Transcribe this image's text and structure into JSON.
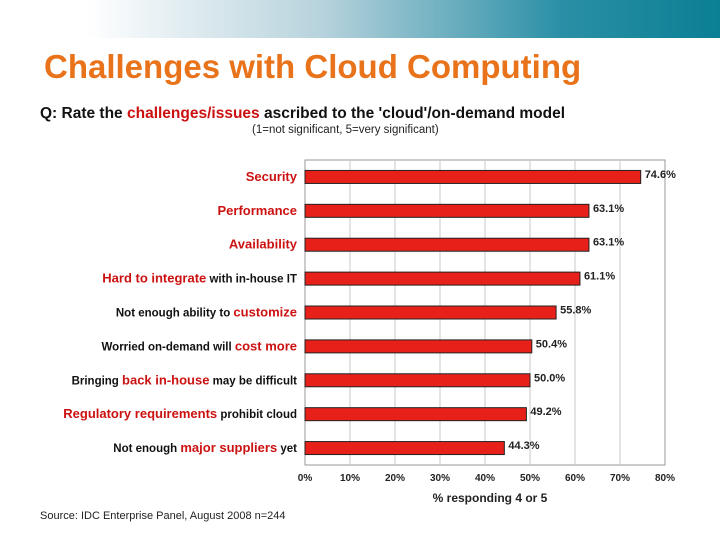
{
  "slide": {
    "title": "Challenges with Cloud Computing",
    "question_prefix": "Q: Rate the ",
    "question_highlight": "challenges/issues",
    "question_suffix": " ascribed to the 'cloud'/on-demand model",
    "scale_note": "(1=not significant, 5=very significant)",
    "source": "Source: IDC Enterprise Panel, August 2008  n=244"
  },
  "colors": {
    "title": "#e8731a",
    "highlight": "#cc1111",
    "bar_fill": "#e8201a",
    "label_dark": "#111111"
  },
  "chart_data": {
    "type": "bar",
    "orientation": "horizontal",
    "categories": [
      "Security",
      "Performance",
      "Availability",
      "Hard to integrate with in-house IT",
      "Not enough ability to customize",
      "Worried on-demand will cost more",
      "Bringing back in-house may be difficult",
      "Regulatory requirements prohibit cloud",
      "Not enough major suppliers yet"
    ],
    "category_parts": [
      [
        {
          "t": "Security",
          "hl": true
        }
      ],
      [
        {
          "t": "Performance",
          "hl": true
        }
      ],
      [
        {
          "t": "Availability",
          "hl": true
        }
      ],
      [
        {
          "t": "Hard to integrate",
          "hl": true
        },
        {
          "t": " with in-house IT",
          "hl": false
        }
      ],
      [
        {
          "t": "Not enough ability to ",
          "hl": false
        },
        {
          "t": "customize",
          "hl": true
        }
      ],
      [
        {
          "t": "Worried on-demand will ",
          "hl": false
        },
        {
          "t": "cost more",
          "hl": true
        }
      ],
      [
        {
          "t": "Bringing ",
          "hl": false
        },
        {
          "t": "back in-house",
          "hl": true
        },
        {
          "t": " may be difficult",
          "hl": false
        }
      ],
      [
        {
          "t": "Regulatory requirements",
          "hl": true
        },
        {
          "t": " prohibit cloud",
          "hl": false
        }
      ],
      [
        {
          "t": "Not enough ",
          "hl": false
        },
        {
          "t": "major suppliers",
          "hl": true
        },
        {
          "t": " yet",
          "hl": false
        }
      ]
    ],
    "values": [
      74.6,
      63.1,
      63.1,
      61.1,
      55.8,
      50.4,
      50.0,
      49.2,
      44.3
    ],
    "value_labels": [
      "74.6%",
      "63.1%",
      "63.1%",
      "61.1%",
      "55.8%",
      "50.4%",
      "50.0%",
      "49.2%",
      "44.3%"
    ],
    "xlim": [
      0,
      80
    ],
    "xticks": [
      0,
      10,
      20,
      30,
      40,
      50,
      60,
      70,
      80
    ],
    "xtick_labels": [
      "0%",
      "10%",
      "20%",
      "30%",
      "40%",
      "50%",
      "60%",
      "70%",
      "80%"
    ],
    "xlabel": "% responding 4 or 5",
    "grid": "vertical"
  }
}
